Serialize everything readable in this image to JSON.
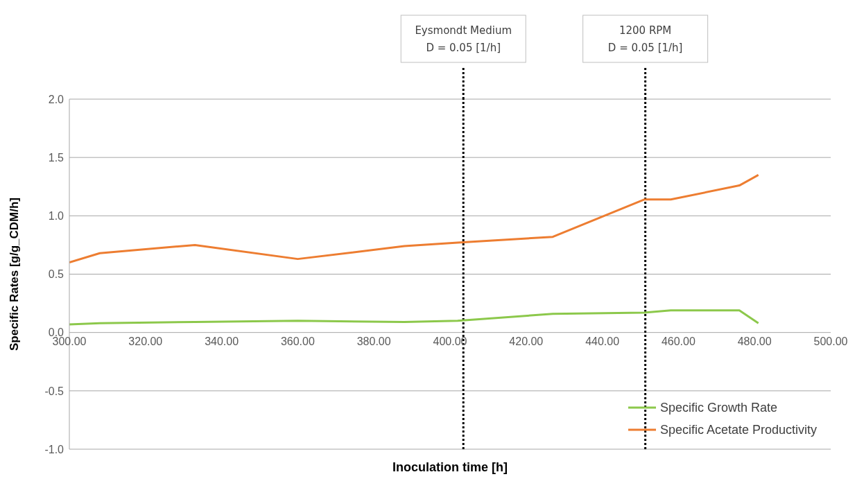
{
  "chart_data": {
    "type": "line",
    "xlabel": "Inoculation time [h]",
    "ylabel": "Specific Rates [g/g_CDM/h]",
    "x": [
      300,
      308,
      333,
      360,
      388,
      402,
      427,
      451,
      458,
      476,
      481
    ],
    "series": [
      {
        "name": "Specific Growth Rate",
        "color": "#8cc84b",
        "values": [
          0.07,
          0.08,
          0.09,
          0.1,
          0.09,
          0.1,
          0.16,
          0.17,
          0.19,
          0.19,
          0.08
        ]
      },
      {
        "name": "Specific Acetate Productivity",
        "color": "#ed7d31",
        "values": [
          0.6,
          0.68,
          0.75,
          0.63,
          0.74,
          0.77,
          0.82,
          1.14,
          1.14,
          1.26,
          1.35
        ]
      }
    ],
    "xlim": [
      300,
      500
    ],
    "xticks": [
      {
        "value": 300,
        "label": "300.00"
      },
      {
        "value": 320,
        "label": "320.00"
      },
      {
        "value": 340,
        "label": "340.00"
      },
      {
        "value": 360,
        "label": "360.00"
      },
      {
        "value": 380,
        "label": "380.00"
      },
      {
        "value": 400,
        "label": "400.00"
      },
      {
        "value": 420,
        "label": "420.00"
      },
      {
        "value": 440,
        "label": "440.00"
      },
      {
        "value": 460,
        "label": "460.00"
      },
      {
        "value": 480,
        "label": "480.00"
      },
      {
        "value": 500,
        "label": "500.00"
      }
    ],
    "ylim": [
      -1,
      2
    ],
    "yticks": [
      {
        "value": -1,
        "label": "-1.0"
      },
      {
        "value": -0.5,
        "label": "-0.5"
      },
      {
        "value": 0,
        "label": "0.0"
      },
      {
        "value": 0.5,
        "label": "0.5"
      },
      {
        "value": 1,
        "label": "1.0"
      },
      {
        "value": 1.5,
        "label": "1.5"
      },
      {
        "value": 2,
        "label": "2.0"
      }
    ],
    "grid": "y",
    "legend": "bottom right",
    "marker": "none",
    "line_style": "solid",
    "ref_lines": [
      {
        "axis": "x",
        "value": 403.5,
        "color": "#000000",
        "line_style": "dotted"
      },
      {
        "axis": "x",
        "value": 451.3,
        "color": "#000000",
        "line_style": "dotted"
      }
    ],
    "annotations": [
      "Eysmondt Medium\nD = 0.05 [1/h]",
      "1200 RPM\nD = 0.05 [1/h]"
    ]
  }
}
